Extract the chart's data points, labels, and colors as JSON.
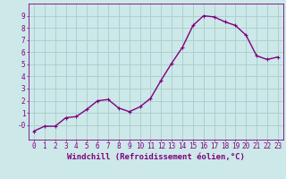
{
  "x": [
    0,
    1,
    2,
    3,
    4,
    5,
    6,
    7,
    8,
    9,
    10,
    11,
    12,
    13,
    14,
    15,
    16,
    17,
    18,
    19,
    20,
    21,
    22,
    23
  ],
  "y": [
    -0.5,
    -0.1,
    -0.1,
    0.6,
    0.7,
    1.3,
    2.0,
    2.1,
    1.4,
    1.1,
    1.5,
    2.2,
    3.7,
    5.1,
    6.4,
    8.2,
    9.0,
    8.9,
    8.5,
    8.2,
    7.4,
    5.7,
    5.4,
    5.6
  ],
  "line_color": "#800080",
  "marker": "+",
  "marker_size": 3,
  "linewidth": 1.0,
  "bg_color": "#cce8e8",
  "grid_color": "#aacccc",
  "xlabel": "Windchill (Refroidissement éolien,°C)",
  "xlabel_color": "#800080",
  "xlim": [
    -0.5,
    23.5
  ],
  "ylim": [
    -1.2,
    10.0
  ],
  "yticks": [
    0,
    1,
    2,
    3,
    4,
    5,
    6,
    7,
    8,
    9
  ],
  "ytick_labels": [
    "-0",
    "1",
    "2",
    "3",
    "4",
    "5",
    "6",
    "7",
    "8",
    "9"
  ],
  "xticks": [
    0,
    1,
    2,
    3,
    4,
    5,
    6,
    7,
    8,
    9,
    10,
    11,
    12,
    13,
    14,
    15,
    16,
    17,
    18,
    19,
    20,
    21,
    22,
    23
  ],
  "tick_color": "#800080",
  "axis_color": "#800080",
  "tick_fontsize": 5.5,
  "xlabel_fontsize": 6.5
}
